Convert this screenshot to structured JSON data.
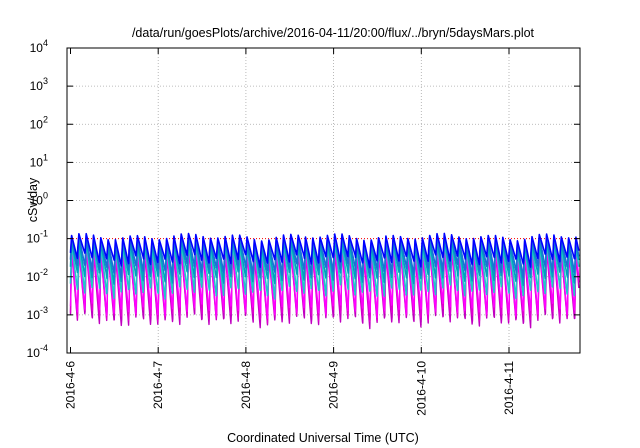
{
  "chart_data": {
    "type": "line",
    "title": "/data/run/goesPlots/archive/2016-04-11/20:00/flux/../bryn/5daysMars.plot",
    "xlabel": "Coordinated Universal Time (UTC)",
    "ylabel": "cSv/day",
    "x_range": [
      "2016-04-06",
      "2016-04-11T21:00"
    ],
    "y_scale": "log",
    "ylim": [
      0.0001,
      10000
    ],
    "y_ticks": [
      {
        "value": 0.0001,
        "base": "10",
        "exp": "-4"
      },
      {
        "value": 0.001,
        "base": "10",
        "exp": "-3"
      },
      {
        "value": 0.01,
        "base": "10",
        "exp": "-2"
      },
      {
        "value": 0.1,
        "base": "10",
        "exp": "-1"
      },
      {
        "value": 1,
        "base": "10",
        "exp": "0"
      },
      {
        "value": 10,
        "base": "10",
        "exp": "1"
      },
      {
        "value": 100,
        "base": "10",
        "exp": "2"
      },
      {
        "value": 1000,
        "base": "10",
        "exp": "3"
      },
      {
        "value": 10000,
        "base": "10",
        "exp": "4"
      }
    ],
    "x_ticks": [
      {
        "day": 0,
        "label": "2016-4-6"
      },
      {
        "day": 1,
        "label": "2016-4-7"
      },
      {
        "day": 2,
        "label": "2016-4-8"
      },
      {
        "day": 3,
        "label": "2016-4-9"
      },
      {
        "day": 4,
        "label": "2016-4-10"
      },
      {
        "day": 5,
        "label": "2016-4-11"
      }
    ],
    "grid": true,
    "reference_line": {
      "value": 0.1,
      "color": "#ff0000",
      "style": "dotted"
    },
    "pattern": {
      "cycles_per_day": 12,
      "peak_value": 0.1,
      "dip_multiplier": [
        0.25,
        0.15,
        0.12,
        0.06,
        0.025,
        0.02,
        0.016
      ]
    },
    "series_colors": [
      "#0000ff",
      "#1c6fd8",
      "#00a0c0",
      "#20c8c8",
      "#ff00ff",
      "#e000d0",
      "#c000c0"
    ]
  }
}
